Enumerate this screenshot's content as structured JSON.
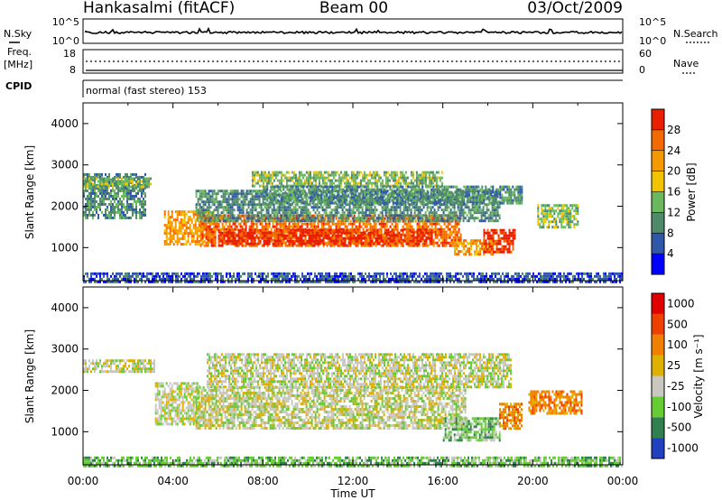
{
  "header": {
    "site": "Hankasalmi (fitACF)",
    "beam": "Beam 00",
    "date": "03/Oct/2009"
  },
  "status_panels": {
    "noise": {
      "left_label": "N.Sky",
      "left_ticks": [
        "10^5",
        "10^0"
      ],
      "right_label": "N.Search",
      "right_ticks": [
        "10^5",
        "10^0"
      ]
    },
    "freq": {
      "left_label_1": "Freq.",
      "left_label_2": "[MHz]",
      "left_ticks": [
        "18",
        "8"
      ],
      "right_label": "Nave",
      "right_ticks": [
        "60",
        "0"
      ]
    },
    "cpid": {
      "label": "CPID",
      "text": "normal (fast stereo) 153"
    }
  },
  "colors": {
    "power": [
      "#0000ff",
      "#2f58a8",
      "#4f8a6a",
      "#6cb85c",
      "#f2c400",
      "#f29a00",
      "#f26a00",
      "#e82000"
    ],
    "velocity": [
      "#2040c0",
      "#308050",
      "#66cc33",
      "#c8c8c0",
      "#e0b000",
      "#f08000",
      "#f04000",
      "#e00000"
    ]
  },
  "chart_data": [
    {
      "type": "heatmap",
      "name": "power",
      "ylabel": "Slant Range [km]",
      "xlabel": "Time UT",
      "x_ticks": [
        "00:00",
        "04:00",
        "08:00",
        "12:00",
        "16:00",
        "20:00",
        "00:00"
      ],
      "xlim": [
        0,
        24
      ],
      "ylim": [
        200,
        4500
      ],
      "y_ticks": [
        1000,
        2000,
        3000,
        4000
      ],
      "colorbar": {
        "label": "Power [dB]",
        "ticks": [
          "4",
          "8",
          "12",
          "16",
          "20",
          "24",
          "28"
        ]
      },
      "regions": [
        {
          "t0": 0.0,
          "t1": 2.8,
          "r0": 1700,
          "r1": 2800,
          "level": 2
        },
        {
          "t0": 0.0,
          "t1": 3.0,
          "r0": 2450,
          "r1": 2700,
          "level": 3
        },
        {
          "t0": 3.6,
          "t1": 5.8,
          "r0": 1100,
          "r1": 1900,
          "level": 5
        },
        {
          "t0": 5.2,
          "t1": 16.8,
          "r0": 1050,
          "r1": 1800,
          "level": 6
        },
        {
          "t0": 6.0,
          "t1": 15.5,
          "r0": 1100,
          "r1": 1450,
          "level": 7
        },
        {
          "t0": 5.0,
          "t1": 18.5,
          "r0": 1650,
          "r1": 2400,
          "level": 2
        },
        {
          "t0": 7.5,
          "t1": 16.0,
          "r0": 2500,
          "r1": 2850,
          "level": 3
        },
        {
          "t0": 8.0,
          "t1": 19.5,
          "r0": 2050,
          "r1": 2500,
          "level": 2
        },
        {
          "t0": 16.5,
          "t1": 18.2,
          "r0": 850,
          "r1": 1200,
          "level": 5
        },
        {
          "t0": 17.8,
          "t1": 19.2,
          "r0": 900,
          "r1": 1450,
          "level": 7
        },
        {
          "t0": 20.2,
          "t1": 22.0,
          "r0": 1500,
          "r1": 2050,
          "level": 3
        },
        {
          "t0": 0.0,
          "t1": 24.0,
          "r0": 200,
          "r1": 400,
          "level": 1
        }
      ]
    },
    {
      "type": "heatmap",
      "name": "velocity",
      "ylabel": "Slant Range [km]",
      "xlabel": "Time UT",
      "x_ticks": [
        "00:00",
        "04:00",
        "08:00",
        "12:00",
        "16:00",
        "20:00",
        "00:00"
      ],
      "xlim": [
        0,
        24
      ],
      "ylim": [
        200,
        4500
      ],
      "y_ticks": [
        1000,
        2000,
        3000,
        4000
      ],
      "colorbar": {
        "label": "Velocity [m s⁻¹]",
        "ticks": [
          "1000",
          "500",
          "100",
          "25",
          "-25",
          "-100",
          "-500",
          "-1000"
        ]
      },
      "regions": [
        {
          "t0": 0.0,
          "t1": 3.2,
          "r0": 2450,
          "r1": 2750,
          "level": 3
        },
        {
          "t0": 3.2,
          "t1": 5.2,
          "r0": 1200,
          "r1": 2200,
          "level": 3
        },
        {
          "t0": 5.0,
          "t1": 17.0,
          "r0": 1100,
          "r1": 2100,
          "level": 3
        },
        {
          "t0": 5.5,
          "t1": 19.0,
          "r0": 2100,
          "r1": 2900,
          "level": 3
        },
        {
          "t0": 16.0,
          "t1": 18.5,
          "r0": 800,
          "r1": 1350,
          "level": 2
        },
        {
          "t0": 18.5,
          "t1": 19.5,
          "r0": 1100,
          "r1": 1700,
          "level": 5
        },
        {
          "t0": 19.8,
          "t1": 22.2,
          "r0": 1450,
          "r1": 2000,
          "level": 5
        },
        {
          "t0": 0.0,
          "t1": 24.0,
          "r0": 200,
          "r1": 400,
          "level": 2
        }
      ]
    }
  ]
}
